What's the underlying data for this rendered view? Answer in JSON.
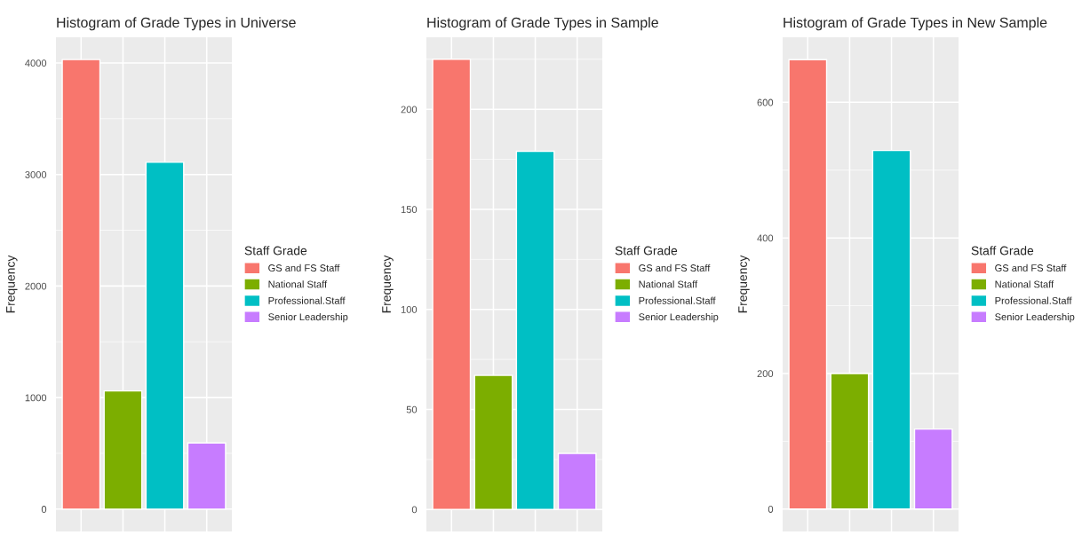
{
  "chart_data": [
    {
      "type": "bar",
      "title": "Histogram of Grade Types in Universe",
      "ylabel": "Frequency",
      "legend_title": "Staff Grade",
      "categories": [
        null,
        null,
        null,
        null
      ],
      "series": [
        {
          "name": "GS and FS Staff",
          "color": "#f8766d",
          "values": [
            4030,
            null,
            null,
            null
          ]
        },
        {
          "name": "National Staff",
          "color": "#7cae00",
          "values": [
            null,
            1060,
            null,
            null
          ]
        },
        {
          "name": "Professional.Staff",
          "color": "#00bfc4",
          "values": [
            null,
            null,
            3110,
            null
          ]
        },
        {
          "name": "Senior Leadership",
          "color": "#c77cff",
          "values": [
            null,
            null,
            null,
            593
          ]
        }
      ],
      "ylim": [
        -200,
        4230
      ],
      "yticks": [
        0,
        1000,
        2000,
        3000,
        4000
      ],
      "grid": true,
      "legend": "right"
    },
    {
      "type": "bar",
      "title": "Histogram of Grade Types in Sample",
      "ylabel": "Frequency",
      "legend_title": "Staff Grade",
      "categories": [
        null,
        null,
        null,
        null
      ],
      "series": [
        {
          "name": "GS and FS Staff",
          "color": "#f8766d",
          "values": [
            225,
            null,
            null,
            null
          ]
        },
        {
          "name": "National Staff",
          "color": "#7cae00",
          "values": [
            null,
            67,
            null,
            null
          ]
        },
        {
          "name": "Professional.Staff",
          "color": "#00bfc4",
          "values": [
            null,
            null,
            179,
            null
          ]
        },
        {
          "name": "Senior Leadership",
          "color": "#c77cff",
          "values": [
            null,
            null,
            null,
            28
          ]
        }
      ],
      "ylim": [
        -11,
        236
      ],
      "yticks": [
        0,
        50,
        100,
        150,
        200
      ],
      "grid": true,
      "legend": "right"
    },
    {
      "type": "bar",
      "title": "Histogram of Grade Types in New Sample",
      "ylabel": "Frequency",
      "legend_title": "Staff Grade",
      "categories": [
        null,
        null,
        null,
        null
      ],
      "series": [
        {
          "name": "GS and FS Staff",
          "color": "#f8766d",
          "values": [
            663,
            null,
            null,
            null
          ]
        },
        {
          "name": "National Staff",
          "color": "#7cae00",
          "values": [
            null,
            200,
            null,
            null
          ]
        },
        {
          "name": "Professional.Staff",
          "color": "#00bfc4",
          "values": [
            null,
            null,
            529,
            null
          ]
        },
        {
          "name": "Senior Leadership",
          "color": "#c77cff",
          "values": [
            null,
            null,
            null,
            118
          ]
        }
      ],
      "ylim": [
        -33,
        696
      ],
      "yticks": [
        0,
        200,
        400,
        600
      ],
      "grid": true,
      "legend": "right"
    }
  ]
}
